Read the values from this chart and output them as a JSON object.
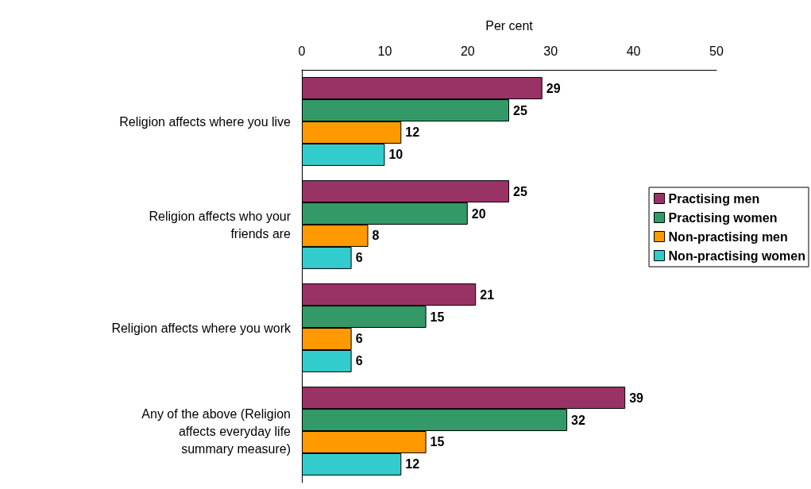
{
  "chart_data": {
    "type": "bar",
    "orientation": "horizontal",
    "xlabel": "Per cent",
    "categories": [
      "Religion affects where you live",
      "Religion affects who your\nfriends are",
      "Religion affects where you work",
      "Any of the above (Religion\naffects everyday life\nsummary measure)"
    ],
    "series": [
      {
        "name": "Practising men",
        "color": "#993366",
        "values": [
          29,
          25,
          21,
          39
        ]
      },
      {
        "name": "Practising women",
        "color": "#339966",
        "values": [
          25,
          20,
          15,
          32
        ]
      },
      {
        "name": "Non-practising men",
        "color": "#ff9900",
        "values": [
          12,
          8,
          6,
          15
        ]
      },
      {
        "name": "Non-practising women",
        "color": "#33cccc",
        "values": [
          10,
          6,
          6,
          12
        ]
      }
    ],
    "xlim": [
      0,
      50
    ],
    "xticks": [
      0,
      10,
      20,
      30,
      40,
      50
    ],
    "data_labels": true,
    "grid": false,
    "legend": "right"
  }
}
